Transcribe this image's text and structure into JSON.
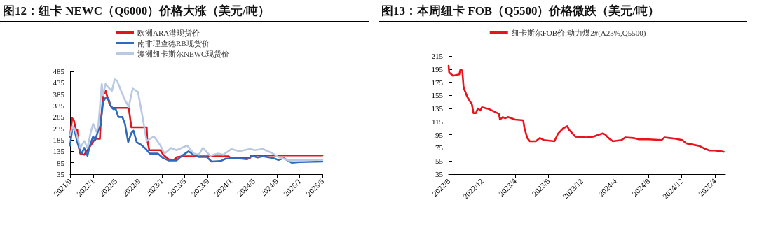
{
  "chart_data": [
    {
      "type": "line",
      "title": "图12：纽卡 NEWC（Q6000）价格大涨（美元/吨）",
      "legend": "top",
      "marker": "none",
      "line_style": "solid",
      "grid": false,
      "xlim": [
        "2021-09-01",
        "2025-05-01"
      ],
      "xticks": [
        {
          "value": "2021-09",
          "label": "2021/9"
        },
        {
          "value": "2022-01",
          "label": "2022/1"
        },
        {
          "value": "2022-05",
          "label": "2022/5"
        },
        {
          "value": "2022-09",
          "label": "2022/9"
        },
        {
          "value": "2023-01",
          "label": "2023/1"
        },
        {
          "value": "2023-05",
          "label": "2023/5"
        },
        {
          "value": "2023-09",
          "label": "2023/9"
        },
        {
          "value": "2024-01",
          "label": "2024/1"
        },
        {
          "value": "2024-05",
          "label": "2024/5"
        },
        {
          "value": "2024-09",
          "label": "2024/9"
        },
        {
          "value": "2025-01",
          "label": "2025/1"
        },
        {
          "value": "2025-05",
          "label": "2025/5"
        }
      ],
      "ylim": [
        35,
        485
      ],
      "yticks": [
        35,
        85,
        135,
        185,
        235,
        285,
        335,
        385,
        435,
        485
      ],
      "series": [
        {
          "name": "欧洲ARA港现货价",
          "color": "#e3141c",
          "x": [
            "2021-09-01",
            "2021-09-12",
            "2021-09-21",
            "2021-10-02",
            "2021-10-09",
            "2021-10-12",
            "2021-10-18",
            "2021-10-25",
            "2021-11-15",
            "2021-12-10",
            "2022-01-12",
            "2022-02-06",
            "2022-02-09",
            "2022-02-23",
            "2022-03-08",
            "2022-03-28",
            "2022-04-11",
            "2022-07-09",
            "2022-07-23",
            "2022-10-12",
            "2022-10-15",
            "2022-10-26",
            "2022-12-24",
            "2023-01-08",
            "2023-02-05",
            "2023-03-05",
            "2023-03-22",
            "2023-05-01",
            "2023-12-20",
            "2024-01-01",
            "2024-04-11",
            "2024-04-18",
            "2025-05-01"
          ],
          "values": [
            198,
            280,
            270,
            230,
            230,
            185,
            150,
            125,
            120,
            150,
            190,
            190,
            240,
            380,
            400,
            345,
            325,
            325,
            240,
            240,
            185,
            140,
            140,
            120,
            100,
            97,
            110,
            113,
            113,
            105,
            105,
            117,
            117
          ]
        },
        {
          "name": "南非理查德RB现货价",
          "color": "#2e6bbd",
          "x": [
            "2021-09-01",
            "2021-09-12",
            "2021-09-21",
            "2021-10-09",
            "2021-10-25",
            "2021-11-01",
            "2021-11-15",
            "2021-12-02",
            "2021-12-13",
            "2022-01-01",
            "2022-01-12",
            "2022-01-26",
            "2022-02-09",
            "2022-02-23",
            "2022-03-08",
            "2022-03-22",
            "2022-04-04",
            "2022-04-18",
            "2022-05-01",
            "2022-05-15",
            "2022-06-05",
            "2022-06-19",
            "2022-07-06",
            "2022-07-23",
            "2022-08-03",
            "2022-08-20",
            "2022-09-10",
            "2022-10-08",
            "2022-10-29",
            "2022-12-10",
            "2023-01-08",
            "2023-02-05",
            "2023-03-19",
            "2023-04-16",
            "2023-05-22",
            "2023-06-19",
            "2023-07-16",
            "2023-08-27",
            "2023-09-21",
            "2023-11-08",
            "2023-12-06",
            "2024-02-01",
            "2024-03-28",
            "2024-04-25",
            "2024-05-22",
            "2024-06-19",
            "2024-08-14",
            "2024-09-10",
            "2024-10-08",
            "2024-11-19",
            "2024-12-31",
            "2025-05-01"
          ],
          "values": [
            160,
            230,
            240,
            175,
            135,
            125,
            150,
            115,
            155,
            200,
            185,
            220,
            250,
            350,
            370,
            370,
            335,
            320,
            320,
            285,
            285,
            255,
            175,
            215,
            225,
            175,
            165,
            145,
            125,
            125,
            105,
            95,
            95,
            115,
            135,
            120,
            110,
            110,
            90,
            92,
            103,
            105,
            100,
            115,
            108,
            113,
            105,
            97,
            105,
            85,
            88,
            90
          ]
        },
        {
          "name": "澳洲纽卡斯尔NEWC现货价",
          "color": "#b9c9e2",
          "x": [
            "2021-09-01",
            "2021-09-15",
            "2021-09-28",
            "2021-10-12",
            "2021-10-25",
            "2021-11-15",
            "2021-12-02",
            "2021-12-20",
            "2022-01-01",
            "2022-01-19",
            "2022-01-29",
            "2022-02-16",
            "2022-02-23",
            "2022-03-08",
            "2022-03-28",
            "2022-04-11",
            "2022-04-25",
            "2022-05-08",
            "2022-05-29",
            "2022-06-19",
            "2022-07-09",
            "2022-07-30",
            "2022-08-27",
            "2022-09-17",
            "2022-10-12",
            "2022-11-19",
            "2022-12-03",
            "2022-12-24",
            "2023-01-15",
            "2023-02-19",
            "2023-03-19",
            "2023-04-16",
            "2023-05-15",
            "2023-06-19",
            "2023-07-16",
            "2023-08-06",
            "2023-09-14",
            "2023-10-25",
            "2023-11-22",
            "2024-01-04",
            "2024-02-15",
            "2024-04-11",
            "2024-05-08",
            "2024-06-19",
            "2024-07-31",
            "2024-09-10",
            "2024-11-05",
            "2024-12-31",
            "2025-05-01"
          ],
          "values": [
            205,
            245,
            230,
            190,
            150,
            180,
            150,
            220,
            255,
            220,
            250,
            430,
            380,
            430,
            410,
            400,
            450,
            445,
            400,
            360,
            330,
            410,
            395,
            300,
            180,
            200,
            185,
            160,
            125,
            150,
            140,
            150,
            160,
            125,
            120,
            150,
            115,
            125,
            120,
            145,
            135,
            145,
            140,
            145,
            130,
            110,
            95,
            95,
            98
          ]
        }
      ]
    },
    {
      "type": "line",
      "title": "图13：本周纽卡 FOB（Q5500）价格微跌（美元/吨）",
      "legend": "top",
      "marker": "none",
      "line_style": "solid",
      "grid": false,
      "xlim": [
        "2022-08-01",
        "2025-05-10"
      ],
      "xticks": [
        {
          "value": "2022-08",
          "label": "2022/8"
        },
        {
          "value": "2022-12",
          "label": "2022/12"
        },
        {
          "value": "2023-04",
          "label": "2023/4"
        },
        {
          "value": "2023-08",
          "label": "2023/8"
        },
        {
          "value": "2023-12",
          "label": "2023/12"
        },
        {
          "value": "2024-04",
          "label": "2024/4"
        },
        {
          "value": "2024-08",
          "label": "2024/8"
        },
        {
          "value": "2024-12",
          "label": "2024/12"
        },
        {
          "value": "2025-04",
          "label": "2025/4"
        }
      ],
      "ylim": [
        35,
        215
      ],
      "yticks": [
        35,
        55,
        75,
        95,
        115,
        135,
        155,
        175,
        195,
        215
      ],
      "series": [
        {
          "name": "纽卡斯尔FOB价:动力煤2#(A23%,Q5500)",
          "color": "#e8141b",
          "x": [
            "2022-08-01",
            "2022-08-03",
            "2022-08-17",
            "2022-09-09",
            "2022-09-13",
            "2022-09-20",
            "2022-09-25",
            "2022-10-08",
            "2022-10-18",
            "2022-10-25",
            "2022-10-31",
            "2022-11-09",
            "2022-11-16",
            "2022-11-25",
            "2022-12-01",
            "2022-12-28",
            "2023-01-17",
            "2023-02-01",
            "2023-02-05",
            "2023-02-15",
            "2023-02-24",
            "2023-03-06",
            "2023-04-01",
            "2023-05-01",
            "2023-05-06",
            "2023-05-16",
            "2023-05-25",
            "2023-06-16",
            "2023-07-01",
            "2023-07-15",
            "2023-08-23",
            "2023-09-06",
            "2023-09-25",
            "2023-10-09",
            "2023-10-17",
            "2023-11-08",
            "2023-12-15",
            "2024-01-12",
            "2024-02-16",
            "2024-02-26",
            "2024-03-08",
            "2024-03-24",
            "2024-04-25",
            "2024-05-09",
            "2024-06-07",
            "2024-06-27",
            "2024-08-02",
            "2024-09-19",
            "2024-09-29",
            "2024-10-18",
            "2024-11-06",
            "2024-12-03",
            "2024-12-17",
            "2025-02-03",
            "2025-02-27",
            "2025-03-13",
            "2025-04-01",
            "2025-04-20",
            "2025-05-04"
          ],
          "values": [
            200,
            190,
            185,
            187,
            194,
            193,
            167,
            153,
            146,
            142,
            128,
            128,
            135,
            132,
            137,
            134,
            130,
            127,
            118,
            122,
            120,
            122,
            118,
            117,
            104,
            90,
            85,
            85,
            90,
            87,
            85,
            97,
            105,
            108,
            102,
            92,
            91,
            92,
            97,
            95,
            90,
            85,
            87,
            91,
            90,
            88,
            88,
            87,
            91,
            90,
            89,
            87,
            82,
            78,
            73,
            71,
            71,
            70,
            69
          ]
        }
      ]
    }
  ]
}
